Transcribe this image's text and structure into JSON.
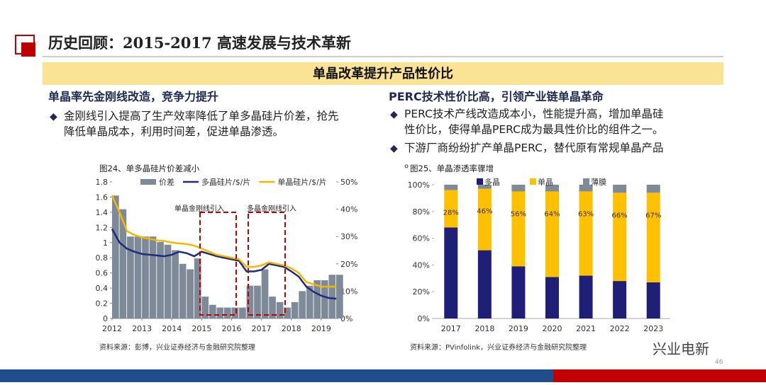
{
  "header": {
    "title": "历史回顾：2015-2017 高速发展与技术革新"
  },
  "banner": "单晶改革提升产品性价比",
  "left": {
    "heading": "单晶率先金刚线改造，竞争力提升",
    "bullets": [
      "金刚线引入提高了生产效率降低了单多晶硅片价差，抢先降低单晶成本，利用时间差，促进单晶渗透。"
    ]
  },
  "right": {
    "heading": "PERC技术性价比高，引领产业链单晶革命",
    "bullets": [
      "PERC技术产线改造成本小，性能提升高，增加单晶硅性价比，使得单晶PERC成为最具性价比的组件之一。",
      "下游厂商纷纷扩产单晶PERC，替代原有常规单晶产品。"
    ]
  },
  "chart_data": [
    {
      "type": "line",
      "title": "图24、单多晶硅片价差减小",
      "source": "资料来源：彭博，兴业证券经济与金融研究院整理",
      "annotations": [
        "单晶金刚线引入",
        "多晶金刚线引入"
      ],
      "x": [
        2012,
        2012.25,
        2012.5,
        2012.75,
        2013,
        2013.25,
        2013.5,
        2013.75,
        2014,
        2014.25,
        2014.5,
        2014.75,
        2015,
        2015.25,
        2015.5,
        2015.75,
        2016,
        2016.25,
        2016.5,
        2016.75,
        2017,
        2017.25,
        2017.5,
        2017.75,
        2018,
        2018.25,
        2018.5,
        2018.75,
        2019,
        2019.25,
        2019.5
      ],
      "xlim": [
        2012,
        2019.5
      ],
      "xticks": [
        2012,
        2013,
        2014,
        2015,
        2016,
        2017,
        2018,
        2019
      ],
      "ylim": [
        0,
        1.8
      ],
      "yticks": [
        0,
        0.2,
        0.4,
        0.6,
        0.8,
        1,
        1.2,
        1.4,
        1.6,
        1.8
      ],
      "y2lim": [
        0,
        50
      ],
      "y2ticks": [
        {
          "value": 0,
          "label": "0%"
        },
        {
          "value": 10,
          "label": "10%"
        },
        {
          "value": 20,
          "label": "20%"
        },
        {
          "value": 30,
          "label": "30%"
        },
        {
          "value": 40,
          "label": "40%"
        },
        {
          "value": 50,
          "label": "50%"
        }
      ],
      "series": [
        {
          "name": "价差",
          "type": "bar",
          "axis": "y2",
          "color": "#7f8a99",
          "values": [
            45,
            40,
            30,
            30,
            30,
            30,
            28,
            27,
            25,
            20,
            18,
            22,
            8,
            5,
            4,
            4,
            4,
            4,
            12,
            12,
            18,
            8,
            6,
            4,
            6,
            10,
            12,
            14,
            14,
            16,
            16
          ]
        },
        {
          "name": "多晶硅片/$/片",
          "color": "#1f2a7a",
          "values": [
            1.18,
            1.0,
            0.92,
            0.88,
            0.85,
            0.84,
            0.83,
            0.82,
            0.84,
            0.88,
            0.86,
            0.82,
            0.88,
            0.85,
            0.82,
            0.8,
            0.78,
            0.76,
            0.62,
            0.62,
            0.64,
            0.72,
            0.7,
            0.68,
            0.62,
            0.55,
            0.42,
            0.35,
            0.3,
            0.27,
            0.26
          ]
        },
        {
          "name": "单晶硅片/$/片",
          "color": "#f5b800",
          "values": [
            1.62,
            1.4,
            1.15,
            1.1,
            1.07,
            1.05,
            1.03,
            1.02,
            1.0,
            0.99,
            0.98,
            0.96,
            0.92,
            0.88,
            0.84,
            0.82,
            0.8,
            0.78,
            0.68,
            0.68,
            0.7,
            0.74,
            0.72,
            0.7,
            0.66,
            0.6,
            0.48,
            0.45,
            0.42,
            0.42,
            0.42
          ]
        }
      ]
    },
    {
      "type": "bar",
      "stacked": true,
      "title": "图25、单晶渗透率骤增",
      "source": "资料来源：PVinfolink，兴业证券经济与金融研究院整理",
      "categories": [
        "2017",
        "2018",
        "2019",
        "2020",
        "2021",
        "2022",
        "2023"
      ],
      "ylim": [
        0,
        100
      ],
      "yticks": [
        {
          "value": 0,
          "label": "0%"
        },
        {
          "value": 20,
          "label": "20%"
        },
        {
          "value": 40,
          "label": "40%"
        },
        {
          "value": 60,
          "label": "60%"
        },
        {
          "value": 80,
          "label": "80%"
        },
        {
          "value": 100,
          "label": "100%"
        }
      ],
      "series": [
        {
          "name": "多晶",
          "color": "#1f1f78",
          "values": [
            68,
            51,
            39,
            31,
            32,
            28,
            27
          ]
        },
        {
          "name": "单晶",
          "color": "#ffc000",
          "values": [
            28,
            46,
            56,
            64,
            63,
            66,
            67
          ],
          "value_labels": [
            "28%",
            "46%",
            "56%",
            "64%",
            "63%",
            "66%",
            "67%"
          ]
        },
        {
          "name": "薄膜",
          "color": "#7f8a99",
          "values": [
            4,
            3,
            5,
            5,
            5,
            6,
            6
          ]
        }
      ]
    }
  ],
  "footer": {
    "brand": "兴业电新",
    "page": "46"
  }
}
